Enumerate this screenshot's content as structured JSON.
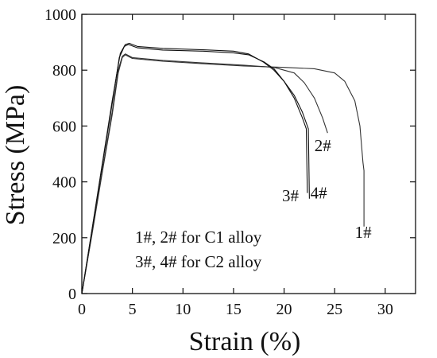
{
  "chart_data": {
    "type": "line",
    "title": "",
    "xlabel": "Strain (%)",
    "ylabel": "Stress (MPa)",
    "xlim": [
      0,
      33
    ],
    "ylim": [
      0,
      1000
    ],
    "x_ticks": [
      0,
      5,
      10,
      15,
      20,
      25,
      30
    ],
    "y_ticks": [
      0,
      200,
      400,
      600,
      800,
      1000
    ],
    "grid": false,
    "legend_lines": [
      "1#, 2# for C1 alloy",
      "3#, 4# for C2 alloy"
    ],
    "series": [
      {
        "name": "1#",
        "color": "#333333",
        "points": [
          [
            0,
            0
          ],
          [
            1,
            210
          ],
          [
            2,
            430
          ],
          [
            3,
            640
          ],
          [
            3.6,
            790
          ],
          [
            4.0,
            845
          ],
          [
            4.3,
            855
          ],
          [
            5,
            842
          ],
          [
            8,
            832
          ],
          [
            12,
            823
          ],
          [
            16,
            815
          ],
          [
            20,
            810
          ],
          [
            23,
            805
          ],
          [
            25,
            790
          ],
          [
            26,
            760
          ],
          [
            27,
            690
          ],
          [
            27.5,
            600
          ],
          [
            27.8,
            470
          ],
          [
            27.9,
            440
          ],
          [
            27.9,
            240
          ]
        ]
      },
      {
        "name": "2#",
        "color": "#333333",
        "points": [
          [
            0,
            0
          ],
          [
            1,
            215
          ],
          [
            2,
            435
          ],
          [
            3,
            650
          ],
          [
            3.6,
            800
          ],
          [
            4.0,
            850
          ],
          [
            4.3,
            858
          ],
          [
            5,
            845
          ],
          [
            8,
            835
          ],
          [
            12,
            826
          ],
          [
            16,
            818
          ],
          [
            19,
            810
          ],
          [
            21,
            790
          ],
          [
            22,
            755
          ],
          [
            23,
            700
          ],
          [
            23.8,
            630
          ],
          [
            24.3,
            575
          ]
        ]
      },
      {
        "name": "3#",
        "color": "#111111",
        "points": [
          [
            0,
            0
          ],
          [
            1,
            225
          ],
          [
            2,
            455
          ],
          [
            3,
            680
          ],
          [
            3.7,
            845
          ],
          [
            4.2,
            885
          ],
          [
            4.6,
            892
          ],
          [
            5.5,
            880
          ],
          [
            8,
            872
          ],
          [
            12,
            868
          ],
          [
            15,
            862
          ],
          [
            16.5,
            855
          ],
          [
            18,
            830
          ],
          [
            19,
            805
          ],
          [
            20,
            760
          ],
          [
            21,
            700
          ],
          [
            21.8,
            630
          ],
          [
            22.2,
            590
          ],
          [
            22.3,
            360
          ]
        ]
      },
      {
        "name": "4#",
        "color": "#111111",
        "points": [
          [
            0,
            0
          ],
          [
            1,
            228
          ],
          [
            2,
            460
          ],
          [
            3,
            690
          ],
          [
            3.8,
            860
          ],
          [
            4.3,
            892
          ],
          [
            4.7,
            896
          ],
          [
            5.5,
            885
          ],
          [
            8,
            878
          ],
          [
            12,
            873
          ],
          [
            15,
            868
          ],
          [
            16.5,
            858
          ],
          [
            18,
            828
          ],
          [
            19,
            800
          ],
          [
            20,
            760
          ],
          [
            21,
            710
          ],
          [
            21.8,
            650
          ],
          [
            22.4,
            590
          ],
          [
            22.5,
            340
          ]
        ]
      }
    ],
    "series_labels": [
      {
        "text": "1#",
        "x": 27.0,
        "y": 200
      },
      {
        "text": "2#",
        "x": 23.0,
        "y": 510
      },
      {
        "text": "3#",
        "x": 19.8,
        "y": 330
      },
      {
        "text": "4#",
        "x": 22.6,
        "y": 340
      }
    ]
  }
}
